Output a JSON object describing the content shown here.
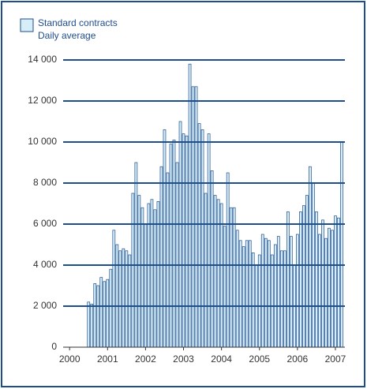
{
  "chart_data": {
    "type": "bar",
    "legend": [
      "Standard contracts",
      "Daily average"
    ],
    "color": "#d6eef8",
    "edge_color": "#1f4e8c",
    "grid_color": "#1f4e8c",
    "x": [
      2000.5,
      2000.583,
      2000.667,
      2000.75,
      2000.833,
      2000.917,
      2001.0,
      2001.083,
      2001.167,
      2001.25,
      2001.333,
      2001.417,
      2001.5,
      2001.583,
      2001.667,
      2001.75,
      2001.833,
      2001.917,
      2002.0,
      2002.083,
      2002.167,
      2002.25,
      2002.333,
      2002.417,
      2002.5,
      2002.583,
      2002.667,
      2002.75,
      2002.833,
      2002.917,
      2003.0,
      2003.083,
      2003.167,
      2003.25,
      2003.333,
      2003.417,
      2003.5,
      2003.583,
      2003.667,
      2003.75,
      2003.833,
      2003.917,
      2004.0,
      2004.083,
      2004.167,
      2004.25,
      2004.333,
      2004.417,
      2004.5,
      2004.583,
      2004.667,
      2004.75,
      2004.833,
      2004.917,
      2005.0,
      2005.083,
      2005.167,
      2005.25,
      2005.333,
      2005.417,
      2005.5,
      2005.583,
      2005.667,
      2005.75,
      2005.833,
      2005.917,
      2006.0,
      2006.083,
      2006.167,
      2006.25,
      2006.333,
      2006.417,
      2006.5,
      2006.583,
      2006.667,
      2006.75,
      2006.833,
      2006.917,
      2007.0,
      2007.083,
      2007.167
    ],
    "values": [
      2200,
      2100,
      3100,
      3000,
      3400,
      3200,
      3300,
      3800,
      5700,
      5000,
      4700,
      4800,
      4700,
      4500,
      7500,
      9000,
      7400,
      6800,
      6000,
      7000,
      7200,
      6700,
      7100,
      8800,
      10600,
      8500,
      9900,
      10100,
      9000,
      11000,
      10400,
      10300,
      13800,
      12700,
      12700,
      10900,
      10600,
      7500,
      10400,
      8600,
      7400,
      7200,
      7000,
      5900,
      8500,
      6800,
      6800,
      5700,
      5200,
      4900,
      5200,
      5200,
      4600,
      4000,
      4500,
      5500,
      5300,
      5200,
      4500,
      5000,
      5400,
      4700,
      4700,
      6600,
      5400,
      4000,
      5500,
      6600,
      6900,
      7400,
      8800,
      8000,
      6600,
      5500,
      6200,
      5300,
      5800,
      5700,
      6400,
      6300,
      10000
    ],
    "xlim": [
      1999.83,
      2007.25
    ],
    "xticks": [
      2000,
      2001,
      2002,
      2003,
      2004,
      2005,
      2006,
      2007
    ],
    "ylim": [
      0,
      14000
    ],
    "yticks": [
      {
        "value": 0,
        "label": "0"
      },
      {
        "value": 2000,
        "label": "2 000"
      },
      {
        "value": 4000,
        "label": "4 000"
      },
      {
        "value": 6000,
        "label": "6 000"
      },
      {
        "value": 8000,
        "label": "8 000"
      },
      {
        "value": 10000,
        "label": "10 000"
      },
      {
        "value": 12000,
        "label": "12 000"
      },
      {
        "value": 14000,
        "label": "14 000"
      }
    ],
    "grid": true
  }
}
